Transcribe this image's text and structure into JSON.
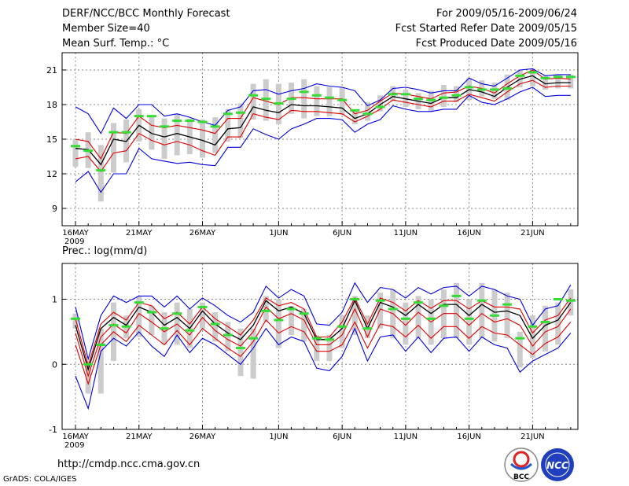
{
  "header": {
    "title": "DERF/NCC/BCC Monthly Forecast",
    "member_size": "Member Size=40",
    "variable": "Mean Surf. Temp.: °C",
    "period": "For 2009/05/16-2009/06/24",
    "started": "Fcst Started Refer Date 2009/05/15",
    "produced": "Fcst Produced Date 2009/05/16"
  },
  "footer": {
    "url": "http://cmdp.ncc.cma.gov.cn",
    "credit": "GrADS: COLA/IGES",
    "logo_left_text": "BCC",
    "logo_right_text": "NCC"
  },
  "colors": {
    "blue": "#0000e0",
    "red": "#e00000",
    "median": "#000000",
    "bar": "#cccccc",
    "green": "#33dd33",
    "grid": "#888888"
  },
  "chart_data": [
    {
      "type": "line",
      "title": "Mean Surf. Temp.: °C",
      "xlabel": "",
      "ylabel": "",
      "x_start": "2009-05-16",
      "days": 40,
      "ylim": [
        7.5,
        22.5
      ],
      "yticks": [
        9,
        12,
        15,
        18,
        21
      ],
      "xticks": [
        {
          "day": 0,
          "label": "16MAY"
        },
        {
          "day": 5,
          "label": "21MAY"
        },
        {
          "day": 10,
          "label": "26MAY"
        },
        {
          "day": 16,
          "label": "1JUN"
        },
        {
          "day": 21,
          "label": "6JUN"
        },
        {
          "day": 26,
          "label": "11JUN"
        },
        {
          "day": 31,
          "label": "16JUN"
        },
        {
          "day": 36,
          "label": "21JUN"
        }
      ],
      "year_label": "2009",
      "series": [
        {
          "name": "max",
          "color": "blue",
          "values": [
            17.8,
            17.2,
            15.5,
            17.7,
            16.8,
            18.0,
            18.0,
            17.0,
            17.2,
            16.9,
            16.5,
            16.2,
            17.5,
            17.8,
            19.2,
            19.3,
            18.9,
            19.2,
            19.4,
            19.8,
            19.6,
            19.5,
            19.2,
            17.9,
            18.4,
            19.4,
            19.5,
            19.3,
            19.0,
            19.2,
            19.2,
            20.3,
            19.8,
            19.6,
            20.3,
            21.0,
            21.1,
            20.5,
            20.6,
            20.6
          ]
        },
        {
          "name": "upper",
          "color": "red",
          "values": [
            15.0,
            14.8,
            13.3,
            15.6,
            15.5,
            17.0,
            16.2,
            16.0,
            16.2,
            16.0,
            15.8,
            15.5,
            16.8,
            16.8,
            18.6,
            18.3,
            18.0,
            18.6,
            18.6,
            18.5,
            18.5,
            18.5,
            17.2,
            17.5,
            18.3,
            19.0,
            18.9,
            18.7,
            18.5,
            19.0,
            19.1,
            19.6,
            19.4,
            19.0,
            19.8,
            20.5,
            21.0,
            20.2,
            20.3,
            20.2
          ]
        },
        {
          "name": "median",
          "color": "median",
          "values": [
            14.2,
            14.1,
            12.8,
            15.0,
            14.8,
            16.2,
            15.5,
            15.2,
            15.5,
            15.2,
            14.9,
            14.5,
            15.9,
            16.0,
            17.8,
            17.5,
            17.3,
            18.0,
            17.9,
            17.9,
            17.8,
            17.7,
            16.8,
            17.2,
            18.0,
            18.7,
            18.5,
            18.3,
            18.1,
            18.6,
            18.6,
            19.3,
            19.1,
            18.7,
            19.5,
            20.2,
            20.5,
            19.8,
            19.9,
            19.9
          ]
        },
        {
          "name": "lower",
          "color": "red",
          "values": [
            13.3,
            13.5,
            12.2,
            13.8,
            14.0,
            15.5,
            14.9,
            14.5,
            14.8,
            14.5,
            14.0,
            13.6,
            15.2,
            15.2,
            17.2,
            16.9,
            16.7,
            17.5,
            17.4,
            17.4,
            17.3,
            17.2,
            16.5,
            17.0,
            17.6,
            18.4,
            18.2,
            18.0,
            17.8,
            18.3,
            18.3,
            18.9,
            18.6,
            18.3,
            19.1,
            19.8,
            20.1,
            19.5,
            19.6,
            19.6
          ]
        },
        {
          "name": "min",
          "color": "blue",
          "values": [
            11.3,
            12.2,
            10.4,
            12.0,
            12.0,
            14.2,
            13.3,
            13.1,
            12.9,
            13.0,
            12.8,
            12.7,
            14.3,
            14.3,
            15.9,
            15.4,
            15.0,
            15.9,
            16.3,
            16.8,
            16.8,
            16.7,
            15.6,
            16.3,
            16.7,
            17.9,
            17.6,
            17.4,
            17.4,
            17.6,
            17.6,
            18.8,
            18.2,
            18.0,
            18.5,
            19.1,
            19.5,
            18.7,
            18.8,
            18.8
          ]
        }
      ],
      "bars": [
        [
          12.6,
          15.0
        ],
        [
          12.5,
          15.6
        ],
        [
          9.6,
          14.5
        ],
        [
          12.1,
          16.4
        ],
        [
          13.0,
          16.7
        ],
        [
          14.8,
          17.6
        ],
        [
          14.1,
          17.0
        ],
        [
          13.3,
          16.8
        ],
        [
          13.6,
          17.2
        ],
        [
          13.7,
          16.8
        ],
        [
          13.4,
          16.7
        ],
        [
          13.8,
          16.9
        ],
        [
          14.8,
          17.6
        ],
        [
          15.1,
          18.1
        ],
        [
          16.7,
          19.8
        ],
        [
          16.6,
          20.2
        ],
        [
          16.3,
          19.8
        ],
        [
          17.2,
          19.9
        ],
        [
          16.8,
          20.2
        ],
        [
          17.0,
          19.6
        ],
        [
          17.0,
          19.5
        ],
        [
          17.1,
          19.5
        ],
        [
          16.3,
          17.6
        ],
        [
          16.6,
          18.2
        ],
        [
          17.4,
          18.8
        ],
        [
          18.3,
          19.6
        ],
        [
          17.8,
          19.3
        ],
        [
          17.6,
          19.0
        ],
        [
          17.4,
          19.2
        ],
        [
          17.8,
          19.7
        ],
        [
          18.2,
          19.6
        ],
        [
          18.4,
          20.3
        ],
        [
          18.7,
          20.1
        ],
        [
          18.5,
          19.9
        ],
        [
          18.4,
          20.6
        ],
        [
          19.5,
          21.0
        ],
        [
          19.6,
          21.1
        ],
        [
          19.3,
          20.5
        ],
        [
          19.4,
          20.6
        ],
        [
          19.4,
          20.6
        ]
      ],
      "green_marks": [
        14.4,
        14.0,
        12.3,
        15.6,
        15.6,
        17.0,
        17.0,
        16.1,
        16.6,
        16.6,
        16.5,
        16.1,
        17.2,
        17.3,
        18.8,
        18.5,
        18.1,
        18.5,
        19.1,
        18.8,
        18.6,
        18.4,
        17.5,
        17.2,
        17.8,
        18.9,
        18.9,
        18.5,
        18.4,
        18.6,
        18.8,
        19.5,
        19.3,
        19.3,
        19.4,
        20.5,
        20.8,
        20.3,
        20.4,
        20.4
      ]
    },
    {
      "type": "line",
      "title": "Prec.: log(mm/d)",
      "xlabel": "",
      "ylabel": "",
      "x_start": "2009-05-16",
      "days": 40,
      "ylim": [
        -1,
        1.55
      ],
      "yticks": [
        -1,
        0,
        1
      ],
      "xticks": [
        {
          "day": 0,
          "label": "16MAY"
        },
        {
          "day": 5,
          "label": "21MAY"
        },
        {
          "day": 10,
          "label": "26MAY"
        },
        {
          "day": 16,
          "label": "1JUN"
        },
        {
          "day": 21,
          "label": "6JUN"
        },
        {
          "day": 26,
          "label": "11JUN"
        },
        {
          "day": 31,
          "label": "16JUN"
        },
        {
          "day": 36,
          "label": "21JUN"
        }
      ],
      "year_label": "2009",
      "series": [
        {
          "name": "max",
          "color": "blue",
          "values": [
            0.88,
            0.08,
            0.75,
            1.05,
            0.95,
            1.05,
            1.05,
            0.88,
            1.05,
            0.85,
            1.02,
            0.9,
            0.75,
            0.65,
            0.8,
            1.2,
            1.02,
            1.15,
            1.05,
            0.62,
            0.6,
            0.8,
            1.25,
            0.95,
            1.18,
            1.15,
            1.02,
            1.18,
            1.08,
            1.18,
            1.2,
            1.05,
            1.2,
            1.15,
            1.05,
            1.0,
            0.6,
            0.85,
            0.9,
            1.22
          ]
        },
        {
          "name": "upper",
          "color": "red",
          "values": [
            0.7,
            -0.02,
            0.62,
            0.8,
            0.68,
            0.95,
            0.9,
            0.7,
            0.8,
            0.62,
            0.88,
            0.7,
            0.58,
            0.45,
            0.68,
            1.02,
            0.9,
            0.95,
            0.85,
            0.42,
            0.42,
            0.65,
            1.02,
            0.62,
            1.02,
            0.95,
            0.82,
            0.98,
            0.86,
            0.98,
            0.98,
            0.85,
            0.98,
            0.88,
            0.88,
            0.85,
            0.48,
            0.68,
            0.75,
            1.02
          ]
        },
        {
          "name": "median",
          "color": "median",
          "values": [
            0.6,
            -0.08,
            0.55,
            0.72,
            0.6,
            0.88,
            0.8,
            0.6,
            0.72,
            0.55,
            0.82,
            0.62,
            0.48,
            0.38,
            0.6,
            0.98,
            0.82,
            0.88,
            0.78,
            0.38,
            0.38,
            0.55,
            0.98,
            0.55,
            0.95,
            0.88,
            0.75,
            0.92,
            0.78,
            0.92,
            0.92,
            0.75,
            0.92,
            0.8,
            0.82,
            0.75,
            0.4,
            0.6,
            0.68,
            0.95
          ]
        },
        {
          "name": "lower",
          "color": "red",
          "values": [
            0.48,
            -0.18,
            0.42,
            0.62,
            0.48,
            0.78,
            0.65,
            0.5,
            0.62,
            0.45,
            0.72,
            0.52,
            0.38,
            0.28,
            0.5,
            0.88,
            0.7,
            0.78,
            0.68,
            0.3,
            0.3,
            0.45,
            0.85,
            0.42,
            0.85,
            0.78,
            0.6,
            0.8,
            0.65,
            0.78,
            0.78,
            0.6,
            0.78,
            0.65,
            0.7,
            0.6,
            0.28,
            0.5,
            0.58,
            0.85
          ]
        },
        {
          "name": "min",
          "color": "blue",
          "values": [
            -0.18,
            -0.68,
            0.2,
            0.4,
            0.28,
            0.5,
            0.28,
            0.12,
            0.45,
            0.18,
            0.4,
            0.3,
            0.15,
            0.0,
            0.25,
            0.55,
            0.3,
            0.42,
            0.35,
            -0.06,
            -0.1,
            0.12,
            0.55,
            0.05,
            0.42,
            0.45,
            0.2,
            0.42,
            0.18,
            0.4,
            0.42,
            0.2,
            0.42,
            0.3,
            0.25,
            -0.12,
            0.05,
            0.15,
            0.25,
            0.48
          ]
        },
        {
          "name": "lower-band",
          "color": "red",
          "values": [
            0.3,
            -0.3,
            0.3,
            0.5,
            0.35,
            0.6,
            0.45,
            0.3,
            0.52,
            0.3,
            0.55,
            0.4,
            0.25,
            0.12,
            0.35,
            0.68,
            0.48,
            0.58,
            0.5,
            0.2,
            0.2,
            0.3,
            0.65,
            0.25,
            0.62,
            0.58,
            0.42,
            0.6,
            0.4,
            0.58,
            0.58,
            0.4,
            0.58,
            0.48,
            0.45,
            0.3,
            0.15,
            0.32,
            0.42,
            0.65
          ]
        }
      ],
      "bars": [
        [
          0.55,
          0.78
        ],
        [
          -0.45,
          0.05
        ],
        [
          -0.45,
          0.55
        ],
        [
          0.05,
          0.95
        ],
        [
          0.4,
          0.75
        ],
        [
          0.42,
          1.05
        ],
        [
          0.45,
          0.9
        ],
        [
          0.3,
          0.8
        ],
        [
          0.3,
          0.95
        ],
        [
          0.25,
          0.85
        ],
        [
          0.55,
          0.95
        ],
        [
          0.35,
          0.8
        ],
        [
          0.2,
          0.65
        ],
        [
          -0.18,
          0.55
        ],
        [
          -0.22,
          0.55
        ],
        [
          0.65,
          1.05
        ],
        [
          0.25,
          1.0
        ],
        [
          0.45,
          0.9
        ],
        [
          0.35,
          0.85
        ],
        [
          0.05,
          0.45
        ],
        [
          0.05,
          0.45
        ],
        [
          0.25,
          0.75
        ],
        [
          0.45,
          1.05
        ],
        [
          0.4,
          0.75
        ],
        [
          0.55,
          1.1
        ],
        [
          0.4,
          1.15
        ],
        [
          0.3,
          0.95
        ],
        [
          0.4,
          1.05
        ],
        [
          0.3,
          1.0
        ],
        [
          0.4,
          1.15
        ],
        [
          0.4,
          1.25
        ],
        [
          0.3,
          1.0
        ],
        [
          0.4,
          1.25
        ],
        [
          0.35,
          1.15
        ],
        [
          0.4,
          1.1
        ],
        [
          -0.05,
          0.5
        ],
        [
          0.1,
          0.75
        ],
        [
          0.2,
          0.9
        ],
        [
          0.3,
          0.95
        ],
        [
          0.75,
          1.15
        ]
      ],
      "green_marks": [
        0.7,
        0.0,
        0.3,
        0.6,
        0.58,
        0.95,
        0.8,
        0.55,
        0.78,
        0.52,
        0.88,
        0.62,
        0.45,
        0.25,
        0.4,
        0.82,
        0.68,
        0.85,
        0.78,
        0.4,
        0.38,
        0.58,
        1.0,
        0.55,
        0.98,
        0.85,
        0.7,
        0.95,
        0.7,
        0.9,
        1.05,
        0.7,
        0.98,
        0.75,
        0.92,
        0.4,
        0.58,
        0.65,
        1.0,
        0.98
      ]
    }
  ]
}
